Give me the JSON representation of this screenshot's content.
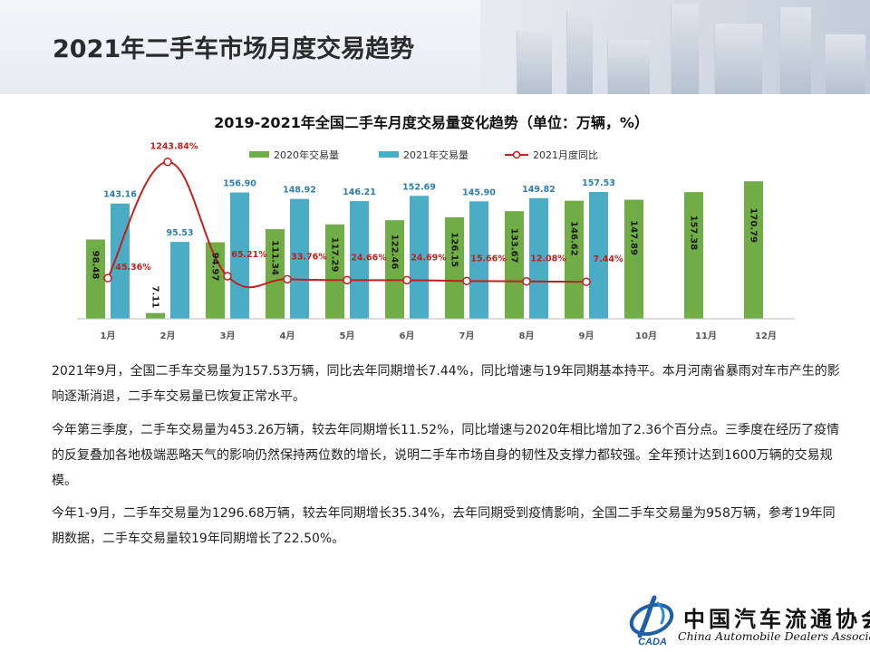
{
  "page": {
    "title": "2021年二手车市场月度交易趋势"
  },
  "colors": {
    "bar_2020": "#70ad47",
    "bar_2021": "#4bacc6",
    "line_yoy": "#c0201f",
    "title_text": "#2b2b2b"
  },
  "chart_data": {
    "type": "bar",
    "title": "2019-2021年全国二手车月度交易量变化趋势（单位：万辆，%）",
    "categories": [
      "1月",
      "2月",
      "3月",
      "4月",
      "5月",
      "6月",
      "7月",
      "8月",
      "9月",
      "10月",
      "11月",
      "12月"
    ],
    "series": [
      {
        "name": "2020年交易量",
        "type": "bar",
        "values": [
          98.48,
          7.11,
          94.97,
          111.34,
          117.29,
          122.46,
          126.15,
          133.67,
          146.62,
          147.89,
          157.38,
          170.79
        ],
        "labels": [
          "98.48",
          "7.11",
          "94.97",
          "111.34",
          "117.29",
          "122.46",
          "126.15",
          "133.67",
          "146.62",
          "147.89",
          "157.38",
          "170.79"
        ]
      },
      {
        "name": "2021年交易量",
        "type": "bar",
        "values": [
          143.16,
          95.53,
          156.9,
          148.92,
          146.21,
          152.69,
          145.9,
          149.82,
          157.53,
          null,
          null,
          null
        ],
        "labels": [
          "143.16",
          "95.53",
          "156.90",
          "148.92",
          "146.21",
          "152.69",
          "145.90",
          "149.82",
          "157.53",
          "",
          "",
          ""
        ]
      },
      {
        "name": "2021月度同比",
        "type": "line",
        "values": [
          45.36,
          1243.84,
          65.21,
          33.76,
          24.66,
          24.69,
          15.66,
          12.08,
          7.44,
          null,
          null,
          null
        ],
        "labels": [
          "45.36%",
          "1243.84%",
          "65.21%",
          "33.76%",
          "24.66%",
          "24.69%",
          "15.66%",
          "12.08%",
          "7.44%",
          "",
          "",
          ""
        ]
      }
    ],
    "ylim": [
      0,
      180
    ],
    "y2lim": [
      0,
      1400
    ],
    "grid": false,
    "legend": "top-center"
  },
  "body": {
    "paragraphs": [
      "2021年9月，全国二手车交易量为157.53万辆，同比去年同期增长7.44%，同比增速与19年同期基本持平。本月河南省暴雨对车市产生的影响逐渐消退，二手车交易量已恢复正常水平。",
      "今年第三季度，二手车交易量为453.26万辆，较去年同期增长11.52%，同比增速与2020年相比增加了2.36个百分点。三季度在经历了疫情的反复叠加各地极端恶略天气的影响仍然保持两位数的增长，说明二手车市场自身的韧性及支撑力都较强。全年预计达到1600万辆的交易规模。",
      "今年1-9月，二手车交易量为1296.68万辆，较去年同期增长35.34%，去年同期受到疫情影响，全国二手车交易量为958万辆，参考19年同期数据，二手车交易量较19年同期增长了22.50%。"
    ]
  },
  "logo": {
    "name_cn": "中国汽车流通协会",
    "name_en": "China Automobile Dealers Association",
    "mark_text": "CADA"
  }
}
